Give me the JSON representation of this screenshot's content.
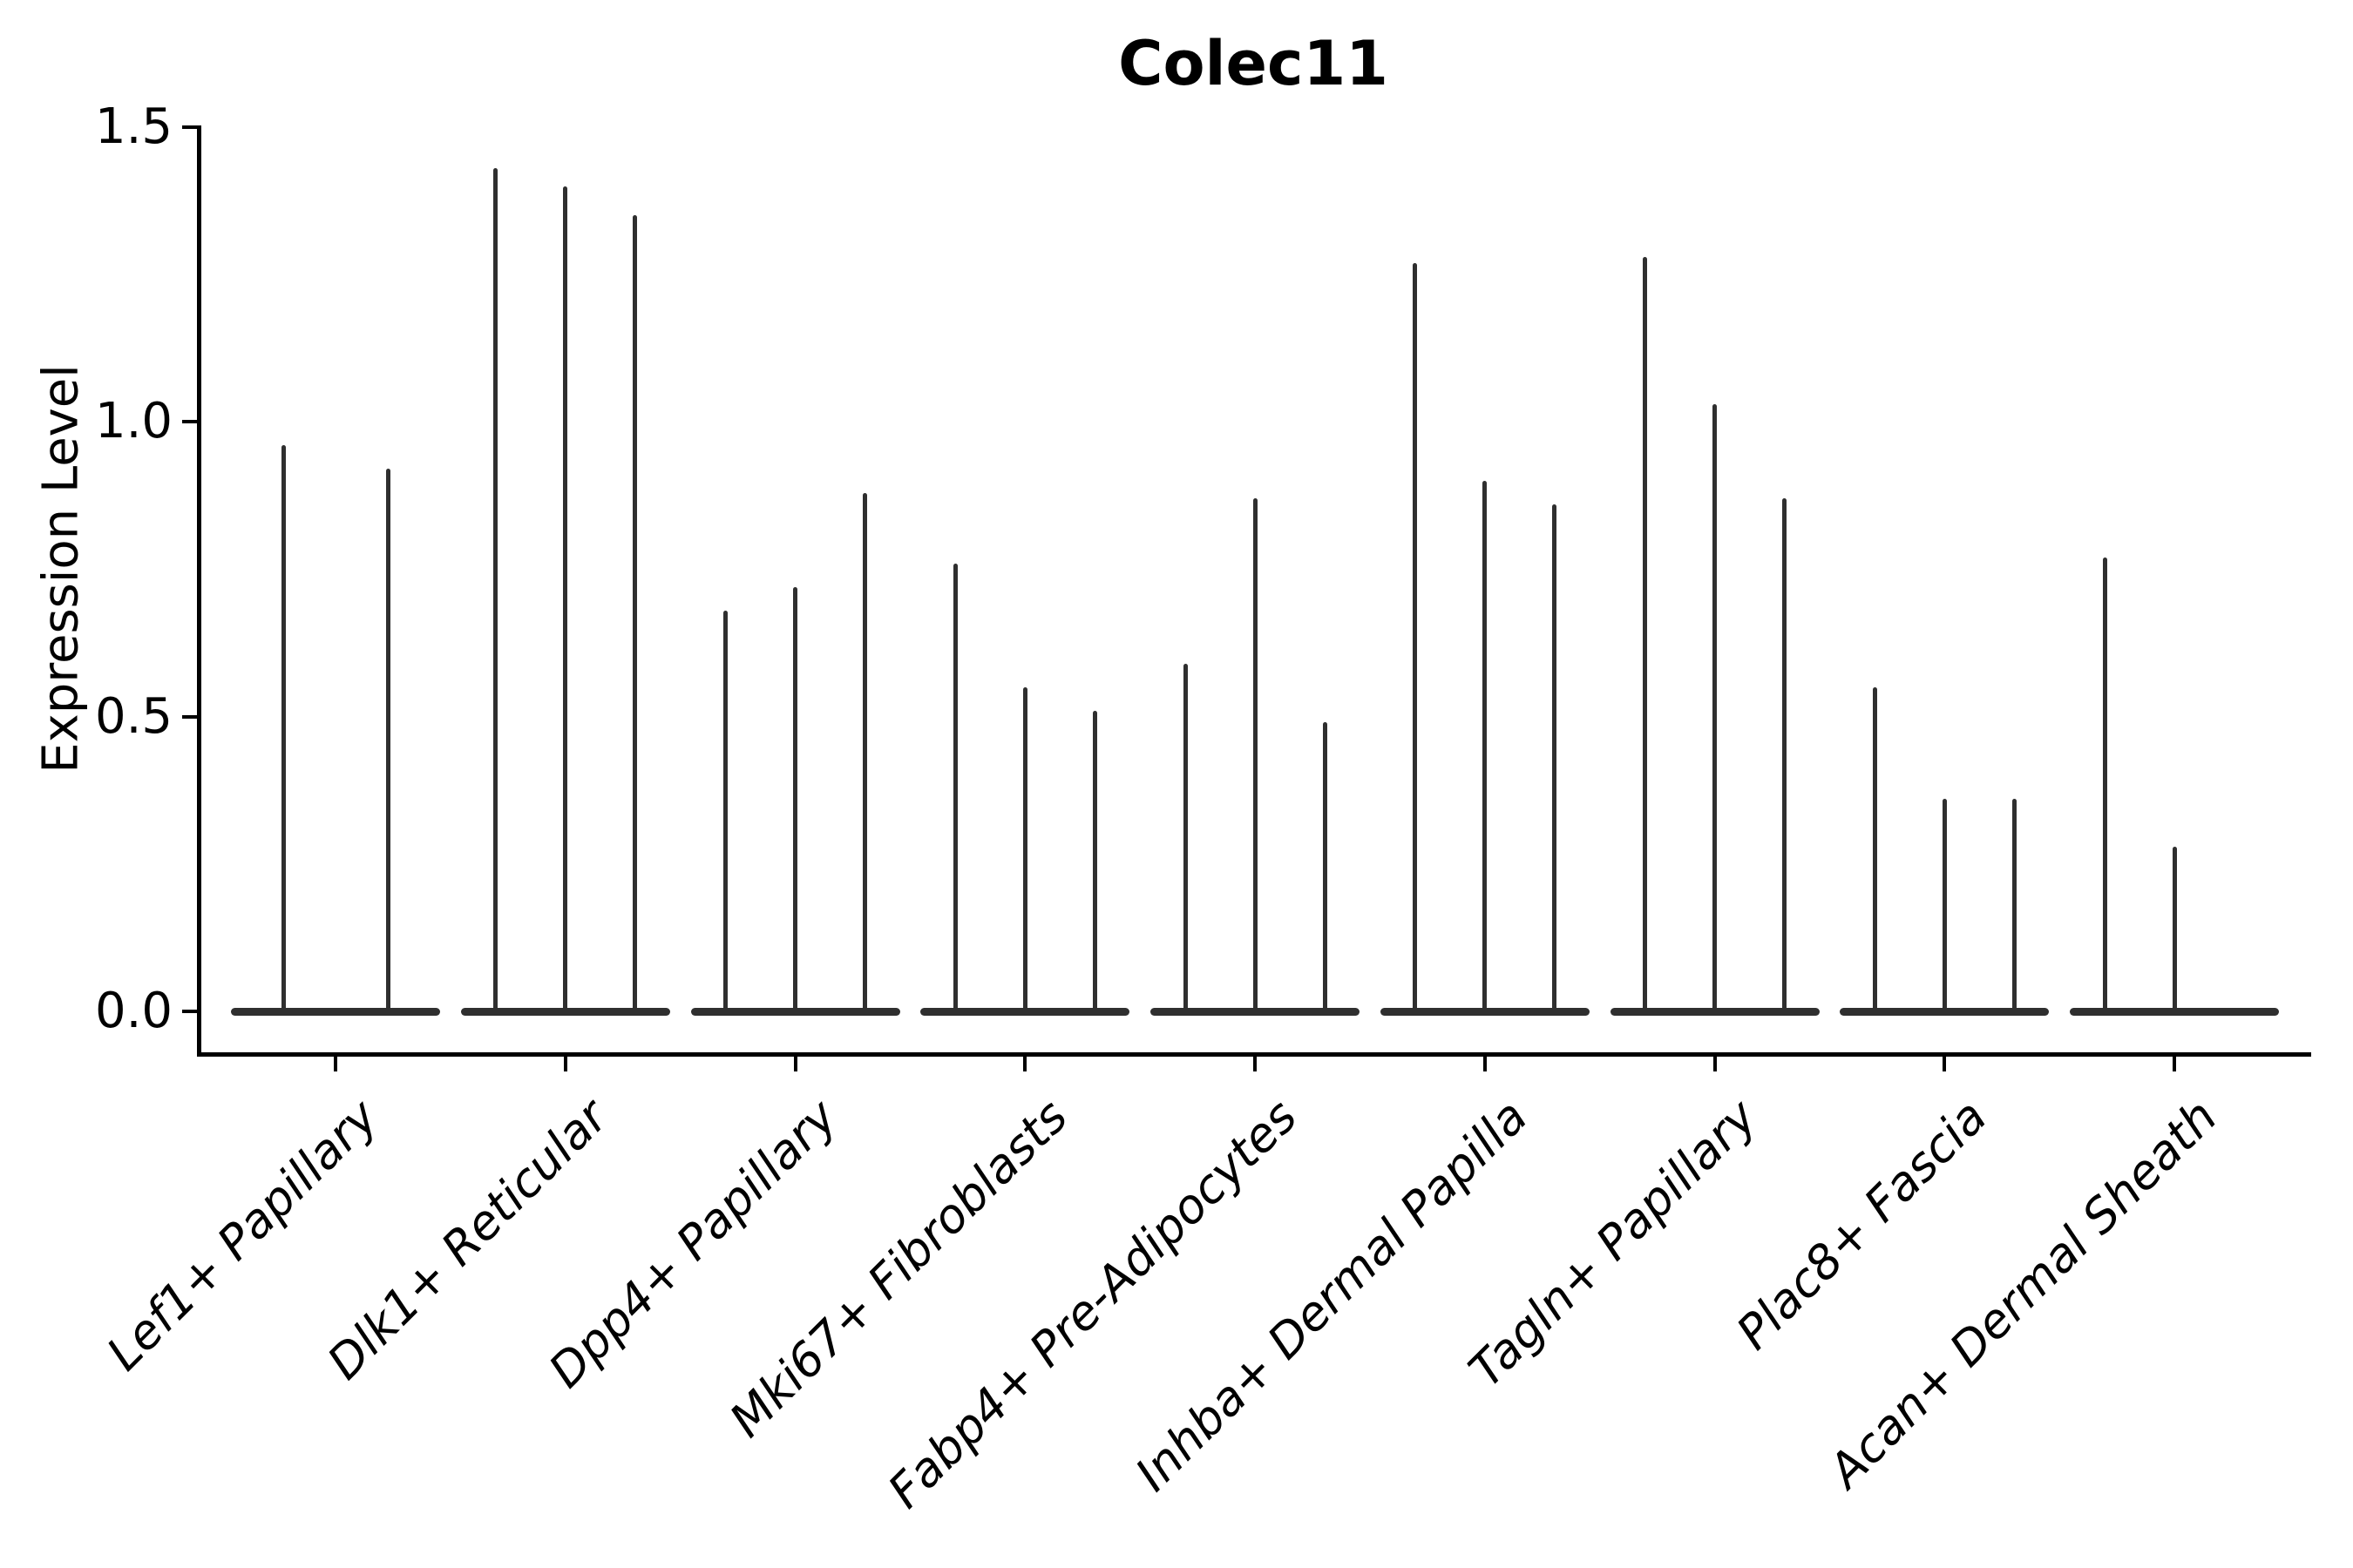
{
  "chart_data": {
    "type": "violin",
    "title": "Colec11",
    "ylabel": "Expression Level",
    "xlabel": "",
    "yticks": [
      0.0,
      0.5,
      1.0,
      1.5
    ],
    "yticklabels": [
      "0.0",
      "0.5",
      "1.0",
      "1.5"
    ],
    "ylim": [
      -0.07,
      1.57
    ],
    "grid": false,
    "legend": "none",
    "violin_color": "#2f2f2f",
    "axis_color": "#000000",
    "style_note": "collapsed spike-like violins: flat body at 0 with thin vertical spike to max expression; groups with 2 entries show 2 wider violins, value 0 means flat violin with no spike",
    "categories": [
      "Lef1+ Papillary",
      "Dlk1+ Reticular",
      "Dpp4+ Papillary",
      "Mki67+ Fibroblasts",
      "Fabp4+ Pre-Adipocytes",
      "Inhba+ Dermal Papilla",
      "Tagln+ Papillary",
      "Plac8+ Fascia",
      "Acan+ Dermal Sheath"
    ],
    "groups": [
      {
        "label": "Lef1+ Papillary",
        "violin_max": [
          0.96,
          0.92
        ]
      },
      {
        "label": "Dlk1+ Reticular",
        "violin_max": [
          1.43,
          1.4,
          1.35
        ]
      },
      {
        "label": "Dpp4+ Papillary",
        "violin_max": [
          0.68,
          0.72,
          0.88
        ]
      },
      {
        "label": "Mki67+ Fibroblasts",
        "violin_max": [
          0.76,
          0.55,
          0.51
        ]
      },
      {
        "label": "Fabp4+ Pre-Adipocytes",
        "violin_max": [
          0.59,
          0.87,
          0.49
        ]
      },
      {
        "label": "Inhba+ Dermal Papilla",
        "violin_max": [
          1.27,
          0.9,
          0.86
        ]
      },
      {
        "label": "Tagln+ Papillary",
        "violin_max": [
          1.28,
          1.03,
          0.87
        ]
      },
      {
        "label": "Plac8+ Fascia",
        "violin_max": [
          0.55,
          0.36,
          0.36
        ]
      },
      {
        "label": "Acan+ Dermal Sheath",
        "violin_max": [
          0.77,
          0.28,
          0.0
        ]
      }
    ]
  }
}
